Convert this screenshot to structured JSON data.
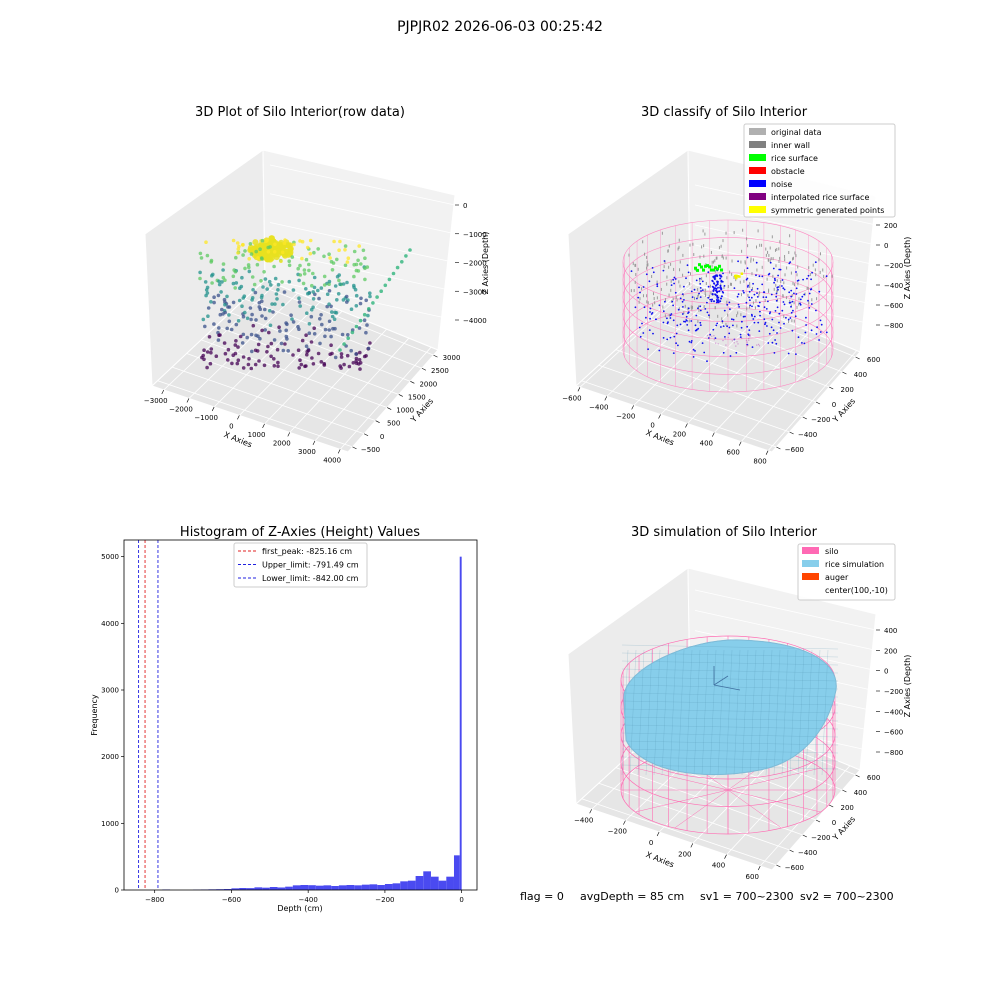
{
  "figure": {
    "suptitle": "PJPJR02 2026-06-03 00:25:42",
    "footer": {
      "flag": "flag = 0",
      "avg_depth": "avgDepth = 85 cm",
      "sv1": "sv1 = 700~2300",
      "sv2": "sv2 = 700~2300"
    }
  },
  "chart_data": [
    {
      "type": "scatter",
      "title": "3D Plot of Silo Interior(row data)",
      "xlabel": "X Axies",
      "ylabel": "Y Axies",
      "zlabel": "Z Axies (Depth)",
      "x_ticks": [
        "−3000",
        "−2000",
        "−1000",
        "0",
        "1000",
        "2000",
        "3000",
        "4000"
      ],
      "y_ticks": [
        "−500",
        "0",
        "500",
        "1000",
        "1500",
        "2000",
        "2500",
        "3000"
      ],
      "z_ticks": [
        "0",
        "−1000",
        "−2000",
        "−3000",
        "−4000"
      ],
      "colormap": [
        "#440154",
        "#3b528b",
        "#21918c",
        "#5ec962",
        "#fde725"
      ]
    },
    {
      "type": "scatter",
      "title": "3D classify of Silo Interior",
      "xlabel": "X Axies",
      "ylabel": "Y Axies",
      "zlabel": "Z Axies (Depth)",
      "x_ticks": [
        "−600",
        "−400",
        "−200",
        "0",
        "200",
        "400",
        "600",
        "800"
      ],
      "y_ticks": [
        "−600",
        "−400",
        "−200",
        "0",
        "200",
        "400",
        "600"
      ],
      "z_ticks": [
        "200",
        "0",
        "−200",
        "−400",
        "−600",
        "−800"
      ],
      "legend": [
        {
          "label": "original data",
          "color": "#b0b0b0"
        },
        {
          "label": "inner wall",
          "color": "#808080"
        },
        {
          "label": "rice surface",
          "color": "#00ff00"
        },
        {
          "label": "obstacle",
          "color": "#ff0000"
        },
        {
          "label": "noise",
          "color": "#0000ff"
        },
        {
          "label": "interpolated rice surface",
          "color": "#800080"
        },
        {
          "label": "symmetric generated points",
          "color": "#ffff00"
        }
      ]
    },
    {
      "type": "bar",
      "title": "Histogram of Z-Axies (Height) Values",
      "xlabel": "Depth (cm)",
      "ylabel": "Frequency",
      "xlim": [
        -880,
        40
      ],
      "ylim": [
        0,
        5250
      ],
      "x_ticks": [
        "−800",
        "−600",
        "−400",
        "−200",
        "0"
      ],
      "x_tick_values": [
        -800,
        -600,
        -400,
        -200,
        0
      ],
      "y_ticks": [
        "0",
        "1000",
        "2000",
        "3000",
        "4000",
        "5000"
      ],
      "y_tick_values": [
        0,
        1000,
        2000,
        3000,
        4000,
        5000
      ],
      "bar_color": "#4a4af0",
      "bins": [
        {
          "x0": -860,
          "x1": -840,
          "value": 0
        },
        {
          "x0": -780,
          "x1": -760,
          "value": 8
        },
        {
          "x0": -700,
          "x1": -680,
          "value": 5
        },
        {
          "x0": -680,
          "x1": -660,
          "value": 8
        },
        {
          "x0": -660,
          "x1": -640,
          "value": 10
        },
        {
          "x0": -640,
          "x1": -620,
          "value": 12
        },
        {
          "x0": -620,
          "x1": -600,
          "value": 15
        },
        {
          "x0": -600,
          "x1": -580,
          "value": 25
        },
        {
          "x0": -580,
          "x1": -560,
          "value": 30
        },
        {
          "x0": -560,
          "x1": -540,
          "value": 28
        },
        {
          "x0": -540,
          "x1": -520,
          "value": 40
        },
        {
          "x0": -520,
          "x1": -500,
          "value": 35
        },
        {
          "x0": -500,
          "x1": -480,
          "value": 45
        },
        {
          "x0": -480,
          "x1": -460,
          "value": 38
        },
        {
          "x0": -460,
          "x1": -440,
          "value": 50
        },
        {
          "x0": -440,
          "x1": -420,
          "value": 70
        },
        {
          "x0": -420,
          "x1": -400,
          "value": 75
        },
        {
          "x0": -400,
          "x1": -380,
          "value": 72
        },
        {
          "x0": -380,
          "x1": -360,
          "value": 65
        },
        {
          "x0": -360,
          "x1": -340,
          "value": 70
        },
        {
          "x0": -340,
          "x1": -320,
          "value": 60
        },
        {
          "x0": -320,
          "x1": -300,
          "value": 70
        },
        {
          "x0": -300,
          "x1": -280,
          "value": 75
        },
        {
          "x0": -280,
          "x1": -260,
          "value": 70
        },
        {
          "x0": -260,
          "x1": -240,
          "value": 80
        },
        {
          "x0": -240,
          "x1": -220,
          "value": 85
        },
        {
          "x0": -220,
          "x1": -200,
          "value": 75
        },
        {
          "x0": -200,
          "x1": -180,
          "value": 90
        },
        {
          "x0": -180,
          "x1": -160,
          "value": 100
        },
        {
          "x0": -160,
          "x1": -140,
          "value": 130
        },
        {
          "x0": -140,
          "x1": -120,
          "value": 140
        },
        {
          "x0": -120,
          "x1": -100,
          "value": 210
        },
        {
          "x0": -100,
          "x1": -80,
          "value": 280
        },
        {
          "x0": -80,
          "x1": -60,
          "value": 200
        },
        {
          "x0": -60,
          "x1": -40,
          "value": 140
        },
        {
          "x0": -40,
          "x1": -20,
          "value": 200
        },
        {
          "x0": -20,
          "x1": -5,
          "value": 520
        },
        {
          "x0": -5,
          "x1": 0,
          "value": 5000
        }
      ],
      "vlines": [
        {
          "label": "first_peak: -825.16 cm",
          "x": -825.16,
          "color": "#e02020"
        },
        {
          "label": "Upper_limit: -791.49 cm",
          "x": -791.49,
          "color": "#2020e0"
        },
        {
          "label": "Lower_limit: -842.00 cm",
          "x": -842.0,
          "color": "#2020e0"
        }
      ],
      "legend_position": "upper center"
    },
    {
      "type": "area",
      "title": "3D simulation of Silo Interior",
      "xlabel": "X Axies",
      "ylabel": "Y Axies",
      "zlabel": "Z Axies (Depth)",
      "x_ticks": [
        "−400",
        "−200",
        "0",
        "200",
        "400",
        "600"
      ],
      "y_ticks": [
        "−600",
        "−400",
        "−200",
        "0",
        "200",
        "400",
        "600"
      ],
      "z_ticks": [
        "400",
        "200",
        "0",
        "−200",
        "−400",
        "−600",
        "−800"
      ],
      "legend": [
        {
          "label": "silo",
          "color": "#ff69b4"
        },
        {
          "label": "rice simulation",
          "color": "#87ceeb"
        },
        {
          "label": "auger",
          "color": "#ff4500"
        },
        {
          "label": "center(100,-10)",
          "color": "#ffffff"
        }
      ]
    }
  ]
}
